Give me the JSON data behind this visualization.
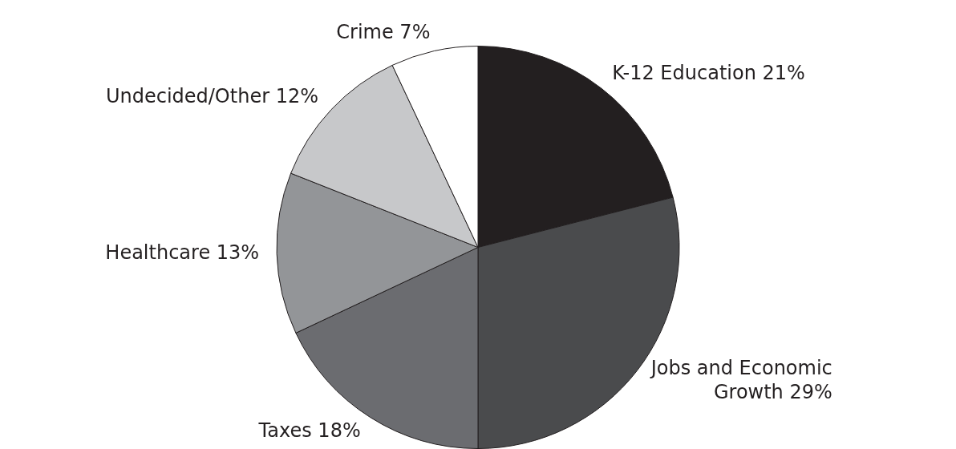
{
  "chart_data": {
    "type": "pie",
    "categories": [
      "K-12 Education",
      "Jobs and Economic Growth",
      "Taxes",
      "Healthcare",
      "Undecided/Other",
      "Crime"
    ],
    "values": [
      21,
      29,
      18,
      13,
      12,
      7
    ],
    "value_labels": [
      "21%",
      "29%",
      "18%",
      "13%",
      "12%",
      "7%"
    ],
    "colors": [
      "#231f20",
      "#4a4b4d",
      "#6b6c70",
      "#939598",
      "#c7c8ca",
      "#ffffff"
    ],
    "legend": false
  }
}
